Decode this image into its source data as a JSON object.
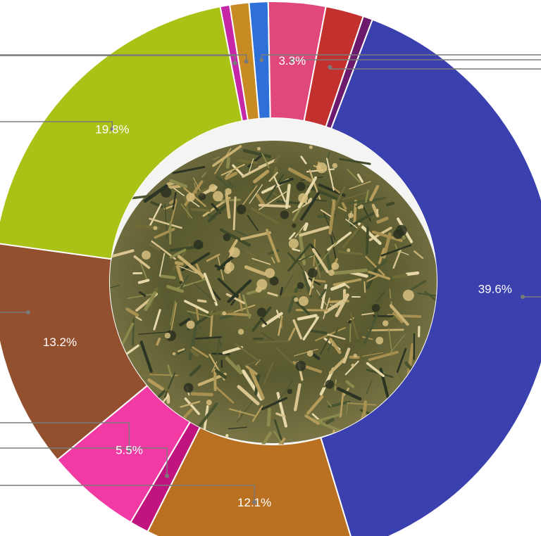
{
  "chart_data": {
    "type": "pie",
    "donut": true,
    "center_content": "photograph of a dried herbal tea blend",
    "slices": [
      {
        "value": 1.1,
        "label": "",
        "color": "#2e6fd8"
      },
      {
        "value": 3.3,
        "label": "3.3%",
        "color": "#e0487c"
      },
      {
        "value": 2.2,
        "label": "",
        "color": "#c3312f"
      },
      {
        "value": 0.55,
        "label": "",
        "color": "#6b1a6d"
      },
      {
        "value": 39.6,
        "label": "39.6%",
        "color": "#3a40ad"
      },
      {
        "value": 12.1,
        "label": "12.1%",
        "color": "#b97020"
      },
      {
        "value": 1.1,
        "label": "",
        "color": "#c0157e"
      },
      {
        "value": 5.5,
        "label": "5.5%",
        "color": "#f23aa4"
      },
      {
        "value": 13.2,
        "label": "13.2%",
        "color": "#93502f"
      },
      {
        "value": 19.8,
        "label": "19.8%",
        "color": "#a9c215"
      },
      {
        "value": 0.55,
        "label": "",
        "color": "#c627a6"
      },
      {
        "value": 1.1,
        "label": "",
        "color": "#c88a22"
      }
    ]
  }
}
